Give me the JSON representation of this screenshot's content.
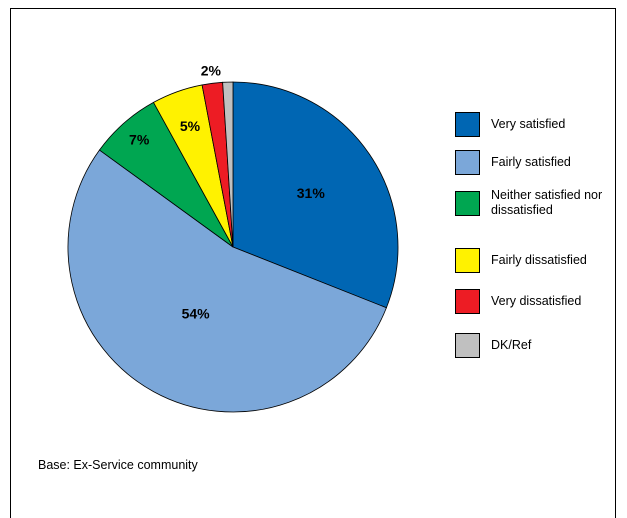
{
  "chart_data": {
    "type": "pie",
    "categories": [
      "Very satisfied",
      "Fairly satisfied",
      "Neither satisfied nor dissatisfied",
      "Fairly dissatisfied",
      "Very dissatisfied",
      "DK/Ref"
    ],
    "values": [
      31,
      54,
      7,
      5,
      2,
      1
    ],
    "value_labels": [
      "31%",
      "54%",
      "7%",
      "5%",
      "2%",
      null
    ],
    "colors": [
      "#0066b3",
      "#7ba7d9",
      "#00a651",
      "#fff200",
      "#ed1c24",
      "#c0c0c0"
    ],
    "legend": "right",
    "footnote": "Base: Ex-Service community"
  }
}
